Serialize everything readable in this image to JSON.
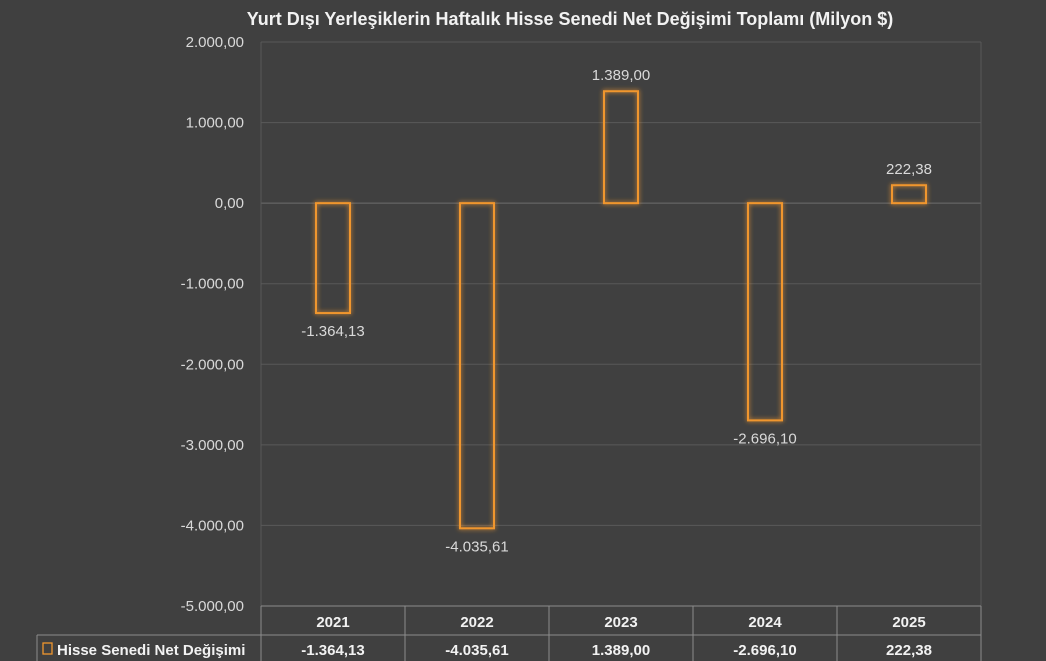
{
  "chart_data": {
    "type": "bar",
    "title": "Yurt Dışı Yerleşiklerin Haftalık Hisse Senedi Net Değişimi Toplamı (Milyon $)",
    "categories": [
      "2021",
      "2022",
      "2023",
      "2024",
      "2025"
    ],
    "series": [
      {
        "name": "Hisse Senedi Net Değişimi",
        "values": [
          -1364.13,
          -4035.61,
          1389.0,
          -2696.1,
          222.38
        ]
      }
    ],
    "data_labels": [
      "-1.364,13",
      "-4.035,61",
      "1.389,00",
      "-2.696,10",
      "222,38"
    ],
    "y_ticks": [
      "2.000,00",
      "1.000,00",
      "0,00",
      "-1.000,00",
      "-2.000,00",
      "-3.000,00",
      "-4.000,00",
      "-5.000,00"
    ],
    "ylim": [
      -5000,
      2000
    ],
    "grid": true,
    "legend": "data-table",
    "bar_color": "#f0962d"
  }
}
